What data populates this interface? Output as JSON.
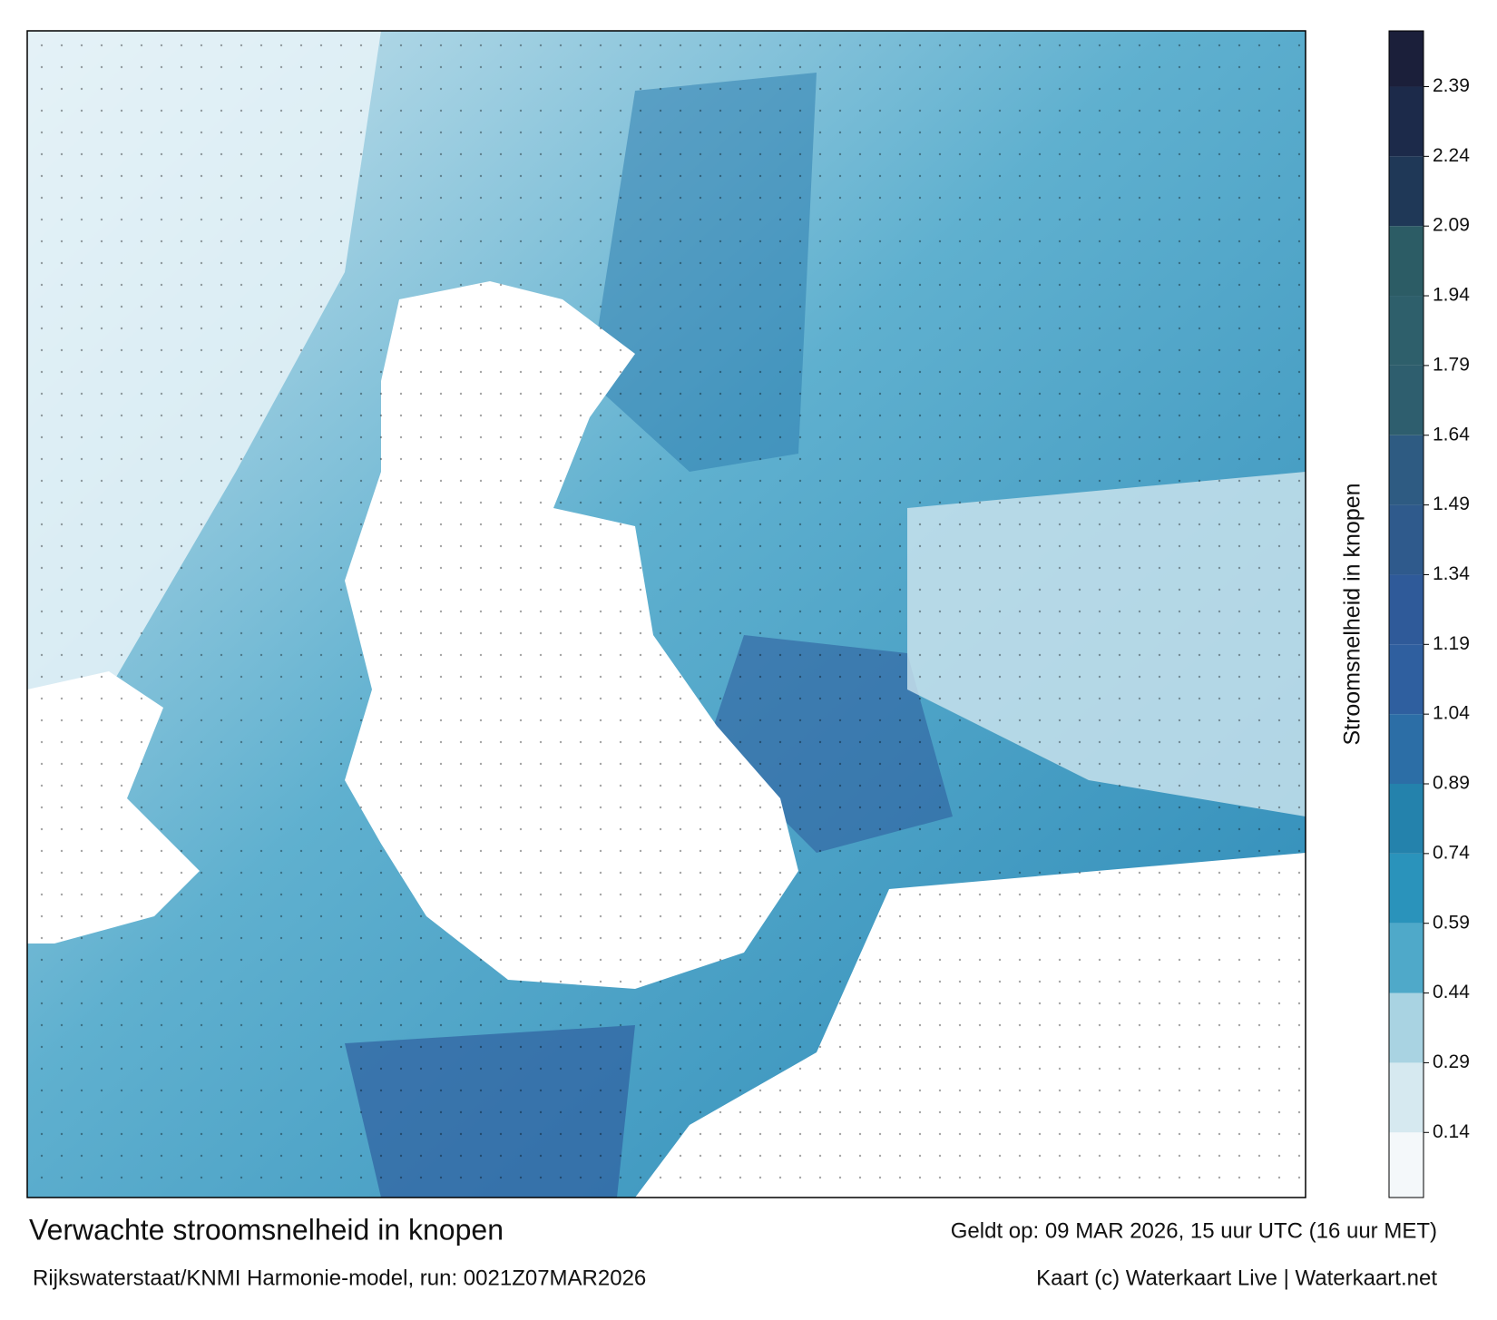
{
  "map": {
    "title": "Verwachte stroomsnelheid in knopen",
    "valid": "Geldt op: 09 MAR 2026, 15 uur UTC (16 uur MET)",
    "model": "Rijkswaterstaat/KNMI Harmonie-model, run: 0021Z07MAR2026",
    "credit": "Kaart (c) Waterkaart Live | Waterkaart.net",
    "colorbar": {
      "label": "Stroomsnelheid in knopen",
      "lim": [
        0,
        2.51
      ],
      "ticks": [
        0.14,
        0.29,
        0.44,
        0.59,
        0.74,
        0.89,
        1.04,
        1.19,
        1.34,
        1.49,
        1.64,
        1.79,
        1.94,
        2.09,
        2.24,
        2.39
      ],
      "colors": [
        "#f4f8fa",
        "#d6e9f0",
        "#a9d3e2",
        "#4fa9c9",
        "#2a93bb",
        "#2482ac",
        "#2c6ea6",
        "#2f5f9f",
        "#2f5a99",
        "#2f5a8c",
        "#2e5b82",
        "#2e5e6e",
        "#2e5f6b",
        "#2c5c65",
        "#1f3857",
        "#1c2a4a",
        "#1b1f3a"
      ]
    }
  }
}
